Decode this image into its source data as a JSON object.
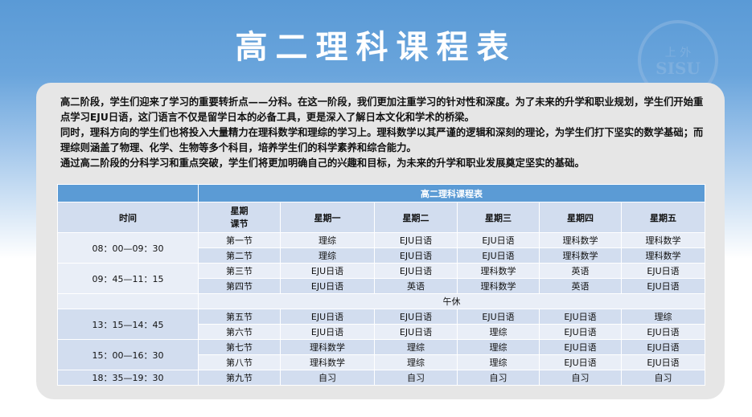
{
  "title": "高二理科课程表",
  "emblem": {
    "text_top": "上外",
    "text_mid": "SISU",
    "year": "1949"
  },
  "intro": [
    "高二阶段，学生们迎来了学习的重要转折点——分科。在这一阶段，我们更加注重学习的针对性和深度。为了未来的升学和职业规划，学生们开始重点学习EJU日语，这门语言不仅是留学日本的必备工具，更是深入了解日本文化和学术的桥梁。",
    "同时，理科方向的学生们也将投入大量精力在理科数学和理综的学习上。理科数学以其严谨的逻辑和深刻的理论，为学生们打下坚实的数学基础；而理综则涵盖了物理、化学、生物等多个科目，培养学生们的科学素养和综合能力。",
    "通过高二阶段的分科学习和重点突破，学生们将更加明确自己的兴趣和目标，为未来的升学和职业发展奠定坚实的基础。"
  ],
  "table": {
    "caption": "高二理科课程表",
    "time_header": "时间",
    "period_header_top": "星期",
    "period_header_bottom": "课节",
    "days": [
      "星期一",
      "星期二",
      "星期三",
      "星期四",
      "星期五"
    ],
    "slots": [
      "08：00—09：30",
      "09：45—11：15",
      "13：15—14：45",
      "15：00—16：30",
      "18：35—19：30"
    ],
    "lunch": "午休",
    "rows": [
      {
        "period": "第一节",
        "cells": [
          "理综",
          "EJU日语",
          "EJU日语",
          "理科数学",
          "理科数学"
        ]
      },
      {
        "period": "第二节",
        "cells": [
          "理综",
          "EJU日语",
          "EJU日语",
          "理科数学",
          "理科数学"
        ]
      },
      {
        "period": "第三节",
        "cells": [
          "EJU日语",
          "EJU日语",
          "理科数学",
          "英语",
          "EJU日语"
        ]
      },
      {
        "period": "第四节",
        "cells": [
          "EJU日语",
          "英语",
          "理科数学",
          "英语",
          "EJU日语"
        ]
      },
      {
        "period": "第五节",
        "cells": [
          "EJU日语",
          "EJU日语",
          "EJU日语",
          "EJU日语",
          "理综"
        ]
      },
      {
        "period": "第六节",
        "cells": [
          "EJU日语",
          "EJU日语",
          "理综",
          "EJU日语",
          "EJU日语"
        ]
      },
      {
        "period": "第七节",
        "cells": [
          "理科数学",
          "理综",
          "理综",
          "EJU日语",
          "EJU日语"
        ]
      },
      {
        "period": "第八节",
        "cells": [
          "理科数学",
          "理综",
          "理综",
          "EJU日语",
          "EJU日语"
        ]
      },
      {
        "period": "第九节",
        "cells": [
          "自习",
          "自习",
          "自习",
          "自习",
          "自习"
        ]
      }
    ]
  },
  "colors": {
    "header_band": "#5b9bd5",
    "row_light": "#e9eef7",
    "row_dark": "#d2ddef",
    "card": "#e6e6e6"
  }
}
